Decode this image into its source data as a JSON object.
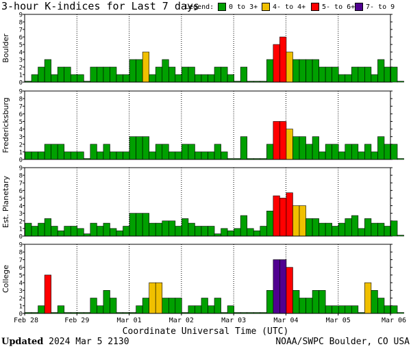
{
  "title": "3-hour K-indices for Last 7 days",
  "legend": {
    "label": "Legend:",
    "items": [
      {
        "text": "0 to 3+",
        "color": "#00a000"
      },
      {
        "text": "4- to 4+",
        "color": "#f0c000"
      },
      {
        "text": "5- to 6+",
        "color": "#ff0000"
      },
      {
        "text": "7- to 9",
        "color": "#500090"
      }
    ]
  },
  "xlabel": "Coordinate Universal Time (UTC)",
  "footer": {
    "updated_label": "Updated",
    "updated_value": "2024 Mar  5 2130",
    "source": "NOAA/SWPC Boulder, CO USA"
  },
  "chart_data": {
    "type": "bar",
    "x_tick_labels": [
      "Feb 28",
      "Feb 29",
      "Mar 01",
      "Mar 02",
      "Mar 03",
      "Mar 04",
      "Mar 05",
      "Mar 06"
    ],
    "y_ticks": [
      0,
      1,
      2,
      3,
      4,
      5,
      6,
      7,
      8,
      9
    ],
    "ylim": [
      0,
      9
    ],
    "bins_per_day": 8,
    "days": 7,
    "color_scale": [
      {
        "min": 0,
        "max": 3.99,
        "color": "#00a000"
      },
      {
        "min": 4,
        "max": 4.99,
        "color": "#f0c000"
      },
      {
        "min": 5,
        "max": 6.99,
        "color": "#ff0000"
      },
      {
        "min": 7,
        "max": 9,
        "color": "#500090"
      }
    ],
    "panels": [
      {
        "name": "Boulder",
        "values": [
          0,
          1,
          2,
          3,
          1,
          2,
          2,
          1,
          1,
          0,
          2,
          2,
          2,
          2,
          1,
          1,
          3,
          3,
          4,
          1,
          2,
          3,
          2,
          1,
          2,
          2,
          1,
          1,
          1,
          2,
          2,
          1,
          0,
          2,
          0,
          0,
          0,
          3,
          5,
          6,
          4,
          3,
          3,
          3,
          3,
          2,
          2,
          2,
          1,
          1,
          2,
          2,
          2,
          1,
          3,
          2,
          2,
          0
        ]
      },
      {
        "name": "Fredericksburg",
        "values": [
          1,
          1,
          1,
          2,
          2,
          2,
          1,
          1,
          1,
          0,
          2,
          1,
          2,
          1,
          1,
          1,
          3,
          3,
          3,
          1,
          2,
          2,
          1,
          1,
          2,
          2,
          1,
          1,
          1,
          2,
          1,
          0,
          0,
          3,
          0,
          0,
          0,
          2,
          5,
          5,
          4,
          3,
          3,
          2,
          3,
          1,
          2,
          2,
          1,
          2,
          2,
          1,
          2,
          1,
          3,
          2,
          2,
          0
        ]
      },
      {
        "name": "Est. Planetary",
        "values": [
          1.7,
          1.3,
          1.7,
          2.3,
          1.3,
          0.7,
          1.3,
          1.3,
          1,
          0.3,
          1.7,
          1.3,
          1.7,
          1,
          0.7,
          1.3,
          3,
          3,
          3,
          1.7,
          1.7,
          2,
          2,
          1.3,
          2.3,
          1.7,
          1.3,
          1.3,
          1.3,
          0.3,
          1,
          0.7,
          1,
          2.7,
          1,
          0.7,
          1.3,
          3.3,
          5.3,
          5,
          5.7,
          4,
          4,
          2.3,
          2.3,
          1.7,
          1.7,
          1.3,
          1.7,
          2.3,
          2.7,
          1,
          2.3,
          1.7,
          1.7,
          1.3,
          2,
          0
        ]
      },
      {
        "name": "College",
        "values": [
          0,
          0,
          1,
          5,
          0,
          1,
          0,
          0,
          0,
          0,
          2,
          1,
          3,
          2,
          0,
          0,
          0,
          1,
          2,
          4,
          4,
          2,
          2,
          2,
          0,
          1,
          1,
          2,
          1,
          2,
          0,
          1,
          0,
          0,
          0,
          0,
          0,
          3,
          7,
          7,
          6,
          3,
          2,
          2,
          3,
          3,
          1,
          1,
          1,
          1,
          1,
          0,
          4,
          3,
          2,
          1,
          1,
          0
        ]
      }
    ]
  }
}
